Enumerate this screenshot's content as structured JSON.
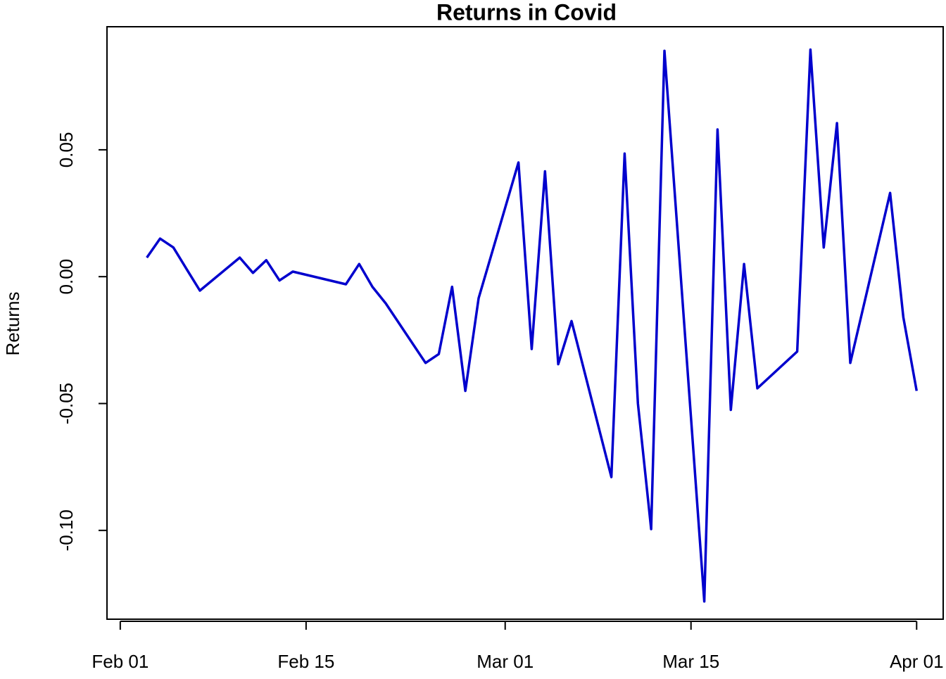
{
  "chart_data": {
    "type": "line",
    "title": "Returns in Covid",
    "y_label": "Returns",
    "x": [
      "Feb 03",
      "Feb 04",
      "Feb 05",
      "Feb 06",
      "Feb 07",
      "Feb 10",
      "Feb 11",
      "Feb 12",
      "Feb 13",
      "Feb 14",
      "Feb 18",
      "Feb 19",
      "Feb 20",
      "Feb 21",
      "Feb 24",
      "Feb 25",
      "Feb 26",
      "Feb 27",
      "Feb 28",
      "Mar 02",
      "Mar 03",
      "Mar 04",
      "Mar 05",
      "Mar 06",
      "Mar 09",
      "Mar 10",
      "Mar 11",
      "Mar 12",
      "Mar 13",
      "Mar 16",
      "Mar 17",
      "Mar 18",
      "Mar 19",
      "Mar 20",
      "Mar 23",
      "Mar 24",
      "Mar 25",
      "Mar 26",
      "Mar 27",
      "Mar 30",
      "Mar 31",
      "Apr 01"
    ],
    "series": [
      {
        "name": "Returns",
        "color": "#0000cd",
        "values": [
          0.0075,
          0.015,
          0.0115,
          0.003,
          -0.0055,
          0.0075,
          0.0015,
          0.0065,
          -0.0015,
          0.002,
          -0.003,
          0.005,
          -0.004,
          -0.0105,
          -0.034,
          -0.0305,
          -0.004,
          -0.045,
          -0.0085,
          0.045,
          -0.0285,
          0.0415,
          -0.0345,
          -0.0175,
          -0.079,
          0.0485,
          -0.05,
          -0.0995,
          0.089,
          -0.128,
          0.058,
          -0.0525,
          0.005,
          -0.044,
          -0.0295,
          0.0895,
          0.0115,
          0.0605,
          -0.034,
          0.033,
          -0.016,
          -0.045
        ]
      }
    ],
    "xlim": [
      "Jan 31",
      "Apr 03"
    ],
    "xticks": [
      "Feb 01",
      "Feb 15",
      "Mar 01",
      "Mar 15",
      "Apr 01"
    ],
    "ylim": [
      -0.135,
      0.0985
    ],
    "yticks": [
      {
        "value": -0.1,
        "label": "-0.10"
      },
      -0.05,
      {
        "value": 0,
        "label": "0.00"
      },
      0.05
    ]
  }
}
